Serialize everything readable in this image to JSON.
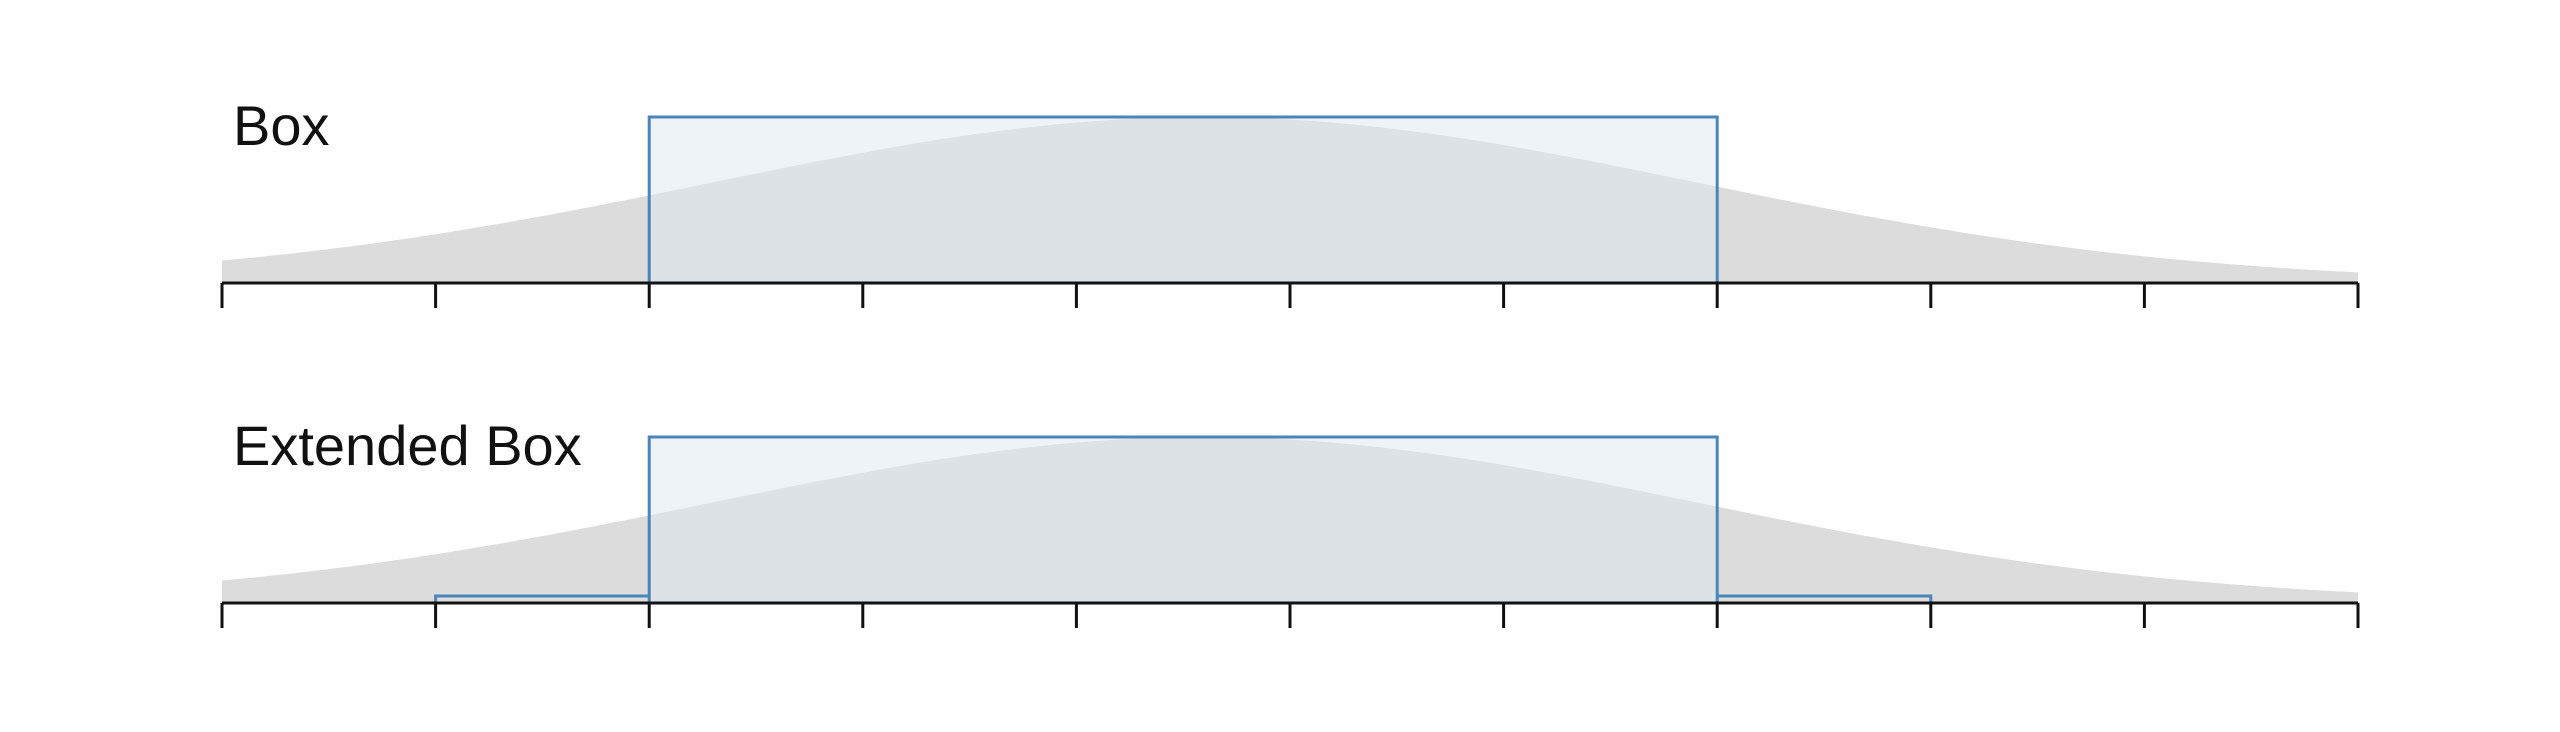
{
  "diagram": {
    "panels": [
      {
        "label": "Box",
        "kernel": "box",
        "box_range": [
          2,
          7
        ],
        "extension_range": null
      },
      {
        "label": "Extended Box",
        "kernel": "extended-box",
        "box_range": [
          2,
          7
        ],
        "extension_range": [
          1,
          8
        ],
        "extension_level": 0.03
      }
    ],
    "axis": {
      "min": 0,
      "max": 10,
      "tick_count": 11
    },
    "reference_curve": {
      "type": "gaussian",
      "peak_at": 4.6,
      "spread": 2.3,
      "min_level": 0.0
    },
    "colors": {
      "box_stroke": "#4a86b8",
      "box_fill": "#dde8ef",
      "curve_fill": "#c8c8c8",
      "axis": "#111111"
    }
  }
}
